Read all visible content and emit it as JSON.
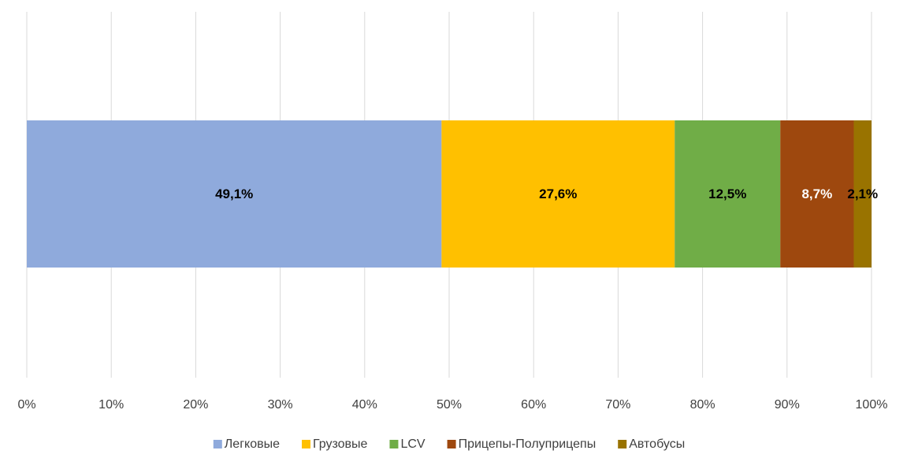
{
  "chart_data": {
    "type": "stacked_barh",
    "categories": [
      null
    ],
    "series": [
      {
        "name": "Легковые",
        "color": "#8faadc",
        "values": [
          49.1
        ],
        "value_labels": [
          "49,1%"
        ]
      },
      {
        "name": "Грузовые",
        "color": "#ffc000",
        "values": [
          27.6
        ],
        "value_labels": [
          "27,6%"
        ]
      },
      {
        "name": "LCV",
        "color": "#70ad47",
        "values": [
          12.5
        ],
        "value_labels": [
          "12,5%"
        ]
      },
      {
        "name": "Прицепы-Полуприцепы",
        "color": "#9e480e",
        "values": [
          8.7
        ],
        "value_labels": [
          "8,7%"
        ],
        "label_color": "#ffffff"
      },
      {
        "name": "Автобусы",
        "color": "#997300",
        "values": [
          2.1
        ],
        "value_labels": [
          "2,1%"
        ]
      }
    ],
    "xlim": [
      0,
      100
    ],
    "xticks": [
      {
        "value": 0,
        "label": "0%"
      },
      {
        "value": 10,
        "label": "10%"
      },
      {
        "value": 20,
        "label": "20%"
      },
      {
        "value": 30,
        "label": "30%"
      },
      {
        "value": 40,
        "label": "40%"
      },
      {
        "value": 50,
        "label": "50%"
      },
      {
        "value": 60,
        "label": "60%"
      },
      {
        "value": 70,
        "label": "70%"
      },
      {
        "value": 80,
        "label": "80%"
      },
      {
        "value": 90,
        "label": "90%"
      },
      {
        "value": 100,
        "label": "100%"
      }
    ],
    "grid": true,
    "legend": "bottom"
  }
}
